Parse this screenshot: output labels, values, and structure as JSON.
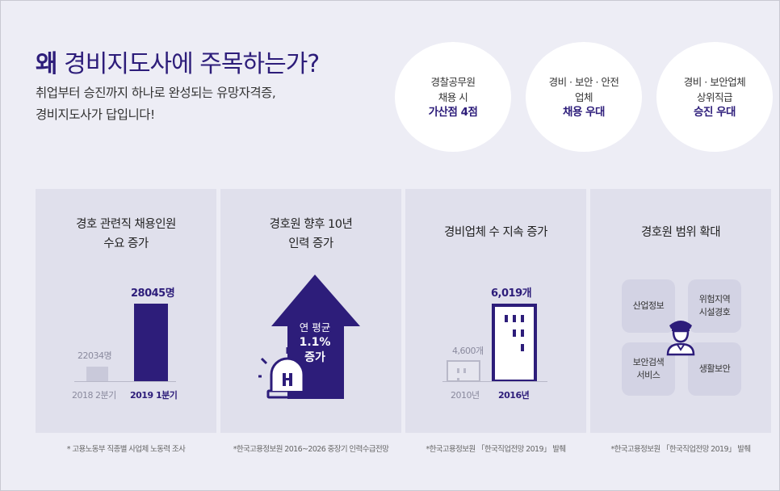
{
  "header": {
    "title_em": "왜",
    "title_rest": "경비지도사에 주목하는가?",
    "subtitle_line1": "취업부터 승진까지 하나로 완성되는 유망자격증,",
    "subtitle_line2": "경비지도사가 답입니다!"
  },
  "benefits": [
    {
      "line1": "경찰공무원",
      "line2": "채용 시",
      "highlight": "가산점 4점"
    },
    {
      "line1": "경비 · 보안 · 안전",
      "line2": "업체",
      "highlight": "채용 우대"
    },
    {
      "line1": "경비 · 보안업체",
      "line2": "상위직급",
      "highlight": "승진 우대"
    }
  ],
  "panels": [
    {
      "title_line1": "경호 관련직 채용인원",
      "title_line2": "수요 증가",
      "note": "* 고용노동부 직종별 사업체 노동력 조사"
    },
    {
      "title_line1": "경호원 향후 10년",
      "title_line2": "인력 증가",
      "arrow_line1": "연 평균",
      "arrow_value": "1.1%",
      "arrow_line2": "증가",
      "note": "*한국고용정보원 2016~2026 중장기 인력수급전망"
    },
    {
      "title_line1": "경비업체 수 지속 증가",
      "note": "*한국고용정보원 「한국직업전망 2019」 발췌"
    },
    {
      "title_line1": "경호원 범위 확대",
      "tiles": [
        "산업정보",
        "위험지역\n시설경호",
        "보안검색\n서비스",
        "생활보안"
      ],
      "note": "*한국고용정보원 「한국직업전망 2019」 발췌"
    }
  ],
  "chart_data": [
    {
      "type": "bar",
      "title": "경호 관련직 채용인원 수요 증가",
      "categories": [
        "2018 2분기",
        "2019 1분기"
      ],
      "values": [
        22034,
        28045
      ],
      "value_labels": [
        "22034명",
        "28045명"
      ],
      "ylim": [
        0,
        28045
      ]
    },
    {
      "type": "bar",
      "title": "경비업체 수 지속 증가",
      "categories": [
        "2010년",
        "2016년"
      ],
      "values": [
        4600,
        6019
      ],
      "value_labels": [
        "4,600개",
        "6,019개"
      ],
      "ylim": [
        0,
        6019
      ]
    }
  ],
  "colors": {
    "background": "#ededf5",
    "panel": "#e0e0ec",
    "accent": "#2d1d7a",
    "muted_bar": "#c9c9da"
  }
}
